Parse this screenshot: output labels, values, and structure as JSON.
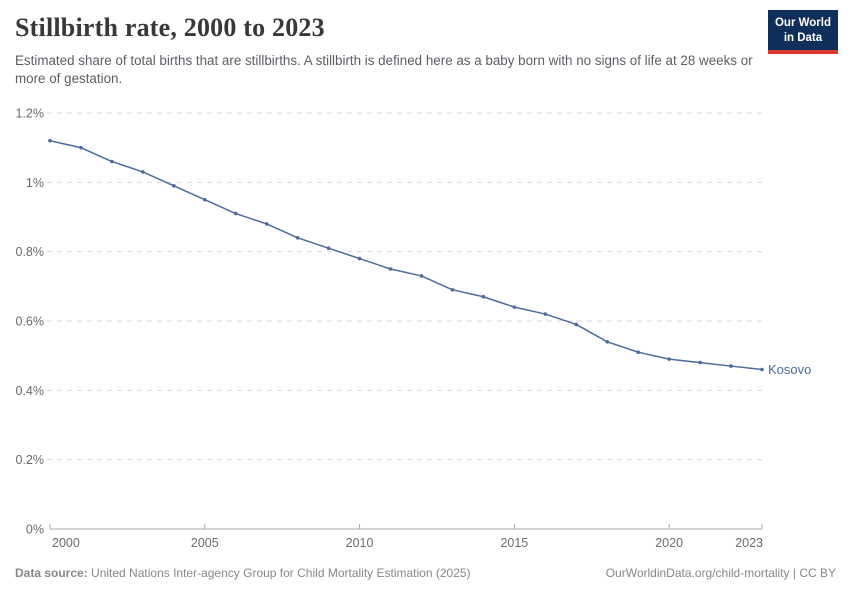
{
  "header": {
    "title": "Stillbirth rate, 2000 to 2023",
    "subtitle": "Estimated share of total births that are stillbirths. A stillbirth is defined here as a baby born with no signs of life at 28 weeks or more of gestation.",
    "logo": {
      "line1": "Our World",
      "line2": "in Data",
      "bg_color": "#0F2E5A",
      "accent_color": "#D7382D"
    }
  },
  "chart_data": {
    "type": "line",
    "title": "Stillbirth rate, 2000 to 2023",
    "xlabel": "",
    "ylabel": "",
    "xlim": [
      2000,
      2023
    ],
    "ylim": [
      0,
      1.2
    ],
    "x": [
      2000,
      2001,
      2002,
      2003,
      2004,
      2005,
      2006,
      2007,
      2008,
      2009,
      2010,
      2011,
      2012,
      2013,
      2014,
      2015,
      2016,
      2017,
      2018,
      2019,
      2020,
      2021,
      2022,
      2023
    ],
    "series": [
      {
        "name": "Kosovo",
        "color": "#4C6A9C",
        "unit": "%",
        "values": [
          1.12,
          1.1,
          1.06,
          1.03,
          0.99,
          0.95,
          0.91,
          0.88,
          0.84,
          0.81,
          0.78,
          0.75,
          0.73,
          0.69,
          0.67,
          0.64,
          0.62,
          0.59,
          0.54,
          0.51,
          0.49,
          0.48,
          0.47,
          0.46
        ]
      }
    ],
    "yticks": {
      "values": [
        0,
        0.2,
        0.4,
        0.6,
        0.8,
        1.0,
        1.2
      ],
      "labels": [
        "0%",
        "0.2%",
        "0.4%",
        "0.6%",
        "0.8%",
        "1%",
        "1.2%"
      ]
    },
    "xticks": {
      "values": [
        2000,
        2005,
        2010,
        2015,
        2020,
        2023
      ],
      "labels": [
        "2000",
        "2005",
        "2010",
        "2015",
        "2020",
        "2023"
      ]
    },
    "style": {
      "grid": "dashed-horizontal",
      "grid_color": "#d9d9d9",
      "axis_color": "#a5a5a5",
      "tick_label_color": "#6b6b6b",
      "legend_position": "end-of-line-label"
    }
  },
  "footer": {
    "source_label": "Data source:",
    "source_text": " United Nations Inter-agency Group for Child Mortality Estimation (2025)",
    "attribution": "OurWorldinData.org/child-mortality | CC BY"
  }
}
